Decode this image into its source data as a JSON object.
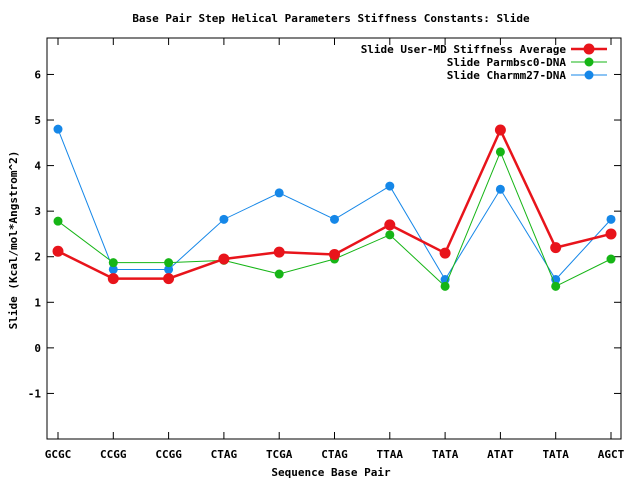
{
  "chart_data": {
    "type": "line",
    "title": "Base Pair Step Helical Parameters Stiffness Constants: Slide",
    "xlabel": "Sequence Base Pair",
    "ylabel": "Slide (Kcal/mol*Angstrom^2)",
    "categories": [
      "GCGC",
      "CCGG",
      "CCGG",
      "CTAG",
      "TCGA",
      "CTAG",
      "TTAA",
      "TATA",
      "ATAT",
      "TATA",
      "AGCT"
    ],
    "ylim": [
      -2,
      6.8
    ],
    "yticks": [
      -1,
      0,
      1,
      2,
      3,
      4,
      5,
      6
    ],
    "ytick_labels": [
      "-1",
      "0",
      "1",
      "2",
      "3",
      "4",
      "5",
      "6"
    ],
    "grid": false,
    "legend_position": "top-right",
    "series": [
      {
        "name": "Slide User-MD Stiffness Average",
        "color": "#e8141b",
        "line_width": "thick",
        "values": [
          2.12,
          1.52,
          1.52,
          1.95,
          2.1,
          2.05,
          2.7,
          2.08,
          4.78,
          2.2,
          2.5
        ]
      },
      {
        "name": "Slide Parmbsc0-DNA",
        "color": "#16b516",
        "line_width": "thin",
        "values": [
          2.78,
          1.87,
          1.87,
          1.92,
          1.62,
          1.95,
          2.48,
          1.35,
          4.3,
          1.35,
          1.95
        ]
      },
      {
        "name": "Slide Charmm27-DNA",
        "color": "#1587e8",
        "line_width": "thin",
        "values": [
          4.8,
          1.72,
          1.72,
          2.82,
          3.4,
          2.82,
          3.55,
          1.5,
          3.48,
          1.5,
          2.82
        ]
      }
    ]
  }
}
